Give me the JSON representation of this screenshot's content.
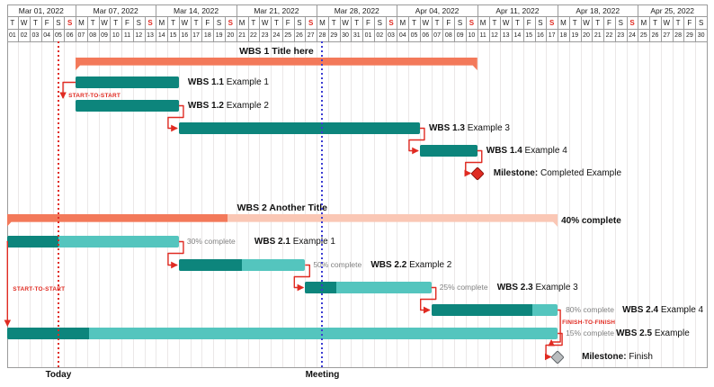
{
  "chart_data": {
    "type": "gantt",
    "title": "",
    "timeline": {
      "start_date": "2022-03-01",
      "end_date": "2022-04-30"
    },
    "calendar": {
      "weeks": [
        {
          "label": "Mar 01, 2022",
          "days": 6
        },
        {
          "label": "Mar 07, 2022",
          "days": 7
        },
        {
          "label": "Mar 14, 2022",
          "days": 7
        },
        {
          "label": "Mar 21, 2022",
          "days": 7
        },
        {
          "label": "Mar 28, 2022",
          "days": 7
        },
        {
          "label": "Apr 04, 2022",
          "days": 7
        },
        {
          "label": "Apr 11, 2022",
          "days": 7
        },
        {
          "label": "Apr 18, 2022",
          "days": 7
        },
        {
          "label": "Apr 25, 2022",
          "days": 6
        }
      ],
      "day_letters": [
        "T",
        "W",
        "T",
        "F",
        "S",
        "S",
        "M",
        "T",
        "W",
        "T",
        "F",
        "S",
        "S",
        "M",
        "T",
        "W",
        "T",
        "F",
        "S",
        "S",
        "M",
        "T",
        "W",
        "T",
        "F",
        "S",
        "S",
        "M",
        "T",
        "W",
        "T",
        "F",
        "S",
        "S",
        "M",
        "T",
        "W",
        "T",
        "F",
        "S",
        "S",
        "M",
        "T",
        "W",
        "T",
        "F",
        "S",
        "S",
        "M",
        "T",
        "W",
        "T",
        "F",
        "S",
        "S",
        "M",
        "T",
        "W",
        "T",
        "F",
        "S"
      ],
      "day_numbers": [
        "01",
        "02",
        "03",
        "04",
        "05",
        "06",
        "07",
        "08",
        "09",
        "10",
        "11",
        "12",
        "13",
        "14",
        "15",
        "16",
        "17",
        "18",
        "19",
        "20",
        "21",
        "22",
        "23",
        "24",
        "25",
        "26",
        "27",
        "28",
        "29",
        "30",
        "31",
        "01",
        "02",
        "03",
        "04",
        "05",
        "06",
        "07",
        "08",
        "09",
        "10",
        "11",
        "12",
        "13",
        "14",
        "15",
        "16",
        "17",
        "18",
        "19",
        "20",
        "21",
        "22",
        "23",
        "24",
        "25",
        "26",
        "27",
        "28",
        "29",
        "30"
      ],
      "sunday_indices": [
        5,
        12,
        19,
        26,
        33,
        40,
        47,
        54
      ]
    },
    "rows": [
      {
        "id": "wbs1",
        "kind": "group",
        "label": "WBS 1 Title here",
        "start": "2022-03-07",
        "end": "2022-04-10",
        "progress": 100
      },
      {
        "id": "t11",
        "kind": "task",
        "label_bold": "WBS 1.1",
        "label": "Example 1",
        "start": "2022-03-07",
        "end": "2022-03-15",
        "progress": 100
      },
      {
        "id": "t12",
        "kind": "task",
        "label_bold": "WBS 1.2",
        "label": "Example 2",
        "start": "2022-03-07",
        "end": "2022-03-15",
        "progress": 100
      },
      {
        "id": "t13",
        "kind": "task",
        "label_bold": "WBS 1.3",
        "label": "Example 3",
        "start": "2022-03-16",
        "end": "2022-04-05",
        "progress": 100
      },
      {
        "id": "t14",
        "kind": "task",
        "label_bold": "WBS 1.4",
        "label": "Example 4",
        "start": "2022-04-06",
        "end": "2022-04-10",
        "progress": 100
      },
      {
        "id": "ms1",
        "kind": "milestone",
        "label_bold": "Milestone:",
        "label": "Completed Example",
        "date": "2022-04-11",
        "milestone_color": "red"
      },
      {
        "id": "wbs2",
        "kind": "group",
        "label": "WBS 2 Another Title",
        "start": "2022-03-01",
        "end": "2022-04-17",
        "progress": 40,
        "progress_label": "40% complete"
      },
      {
        "id": "t21",
        "kind": "task",
        "label_bold": "WBS 2.1",
        "label": "Example 1",
        "start": "2022-03-01",
        "end": "2022-03-15",
        "progress": 30,
        "progress_label": "30% complete"
      },
      {
        "id": "t22",
        "kind": "task",
        "label_bold": "WBS 2.2",
        "label": "Example 2",
        "start": "2022-03-16",
        "end": "2022-03-26",
        "progress": 50,
        "progress_label": "50% complete"
      },
      {
        "id": "t23",
        "kind": "task",
        "label_bold": "WBS 2.3",
        "label": "Example 3",
        "start": "2022-03-27",
        "end": "2022-04-06",
        "progress": 25,
        "progress_label": "25% complete"
      },
      {
        "id": "t24",
        "kind": "task",
        "label_bold": "WBS 2.4",
        "label": "Example 4",
        "start": "2022-04-07",
        "end": "2022-04-17",
        "progress": 80,
        "progress_label": "80% complete"
      },
      {
        "id": "t25",
        "kind": "task",
        "label_bold": "WBS 2.5",
        "label": "Example",
        "start": "2022-03-01",
        "end": "2022-04-17",
        "progress": 15,
        "progress_label": "15% complete"
      },
      {
        "id": "ms2",
        "kind": "milestone",
        "label_bold": "Milestone:",
        "label": "Finish",
        "date": "2022-04-18",
        "milestone_color": "gray"
      }
    ],
    "links": [
      {
        "type": "start-to-start",
        "from": "t11",
        "to": "t12",
        "label": "START-TO-START"
      },
      {
        "type": "finish-to-start",
        "from": "t12",
        "to": "t13"
      },
      {
        "type": "finish-to-start",
        "from": "t13",
        "to": "t14"
      },
      {
        "type": "finish-to-milestone",
        "from": "t14",
        "to": "ms1"
      },
      {
        "type": "start-to-start",
        "from": "t21",
        "to": "t25",
        "label": "START-TO-START"
      },
      {
        "type": "finish-to-start",
        "from": "t21",
        "to": "t22"
      },
      {
        "type": "finish-to-start",
        "from": "t22",
        "to": "t23"
      },
      {
        "type": "finish-to-start",
        "from": "t23",
        "to": "t24"
      },
      {
        "type": "finish-to-finish",
        "from": "t24",
        "to": "t25",
        "label": "FINISH-TO-FINISH"
      },
      {
        "type": "finish-to-milestone",
        "from": "t25",
        "to": "ms2"
      }
    ],
    "markers": {
      "today": {
        "label": "Today",
        "date": "2022-03-05"
      },
      "meeting": {
        "label": "Meeting",
        "date": "2022-03-28"
      }
    }
  },
  "colors": {
    "group_dark": "#f3795a",
    "group_light": "#fac7b5",
    "task_dark": "#0d857c",
    "task_light": "#54c5be",
    "link_red": "#e02b22",
    "sunday_red": "#e02b22",
    "today_line": "#e02b22",
    "meeting_line": "#3c3cd2",
    "milestone_red_fill": "#e02b22",
    "milestone_red_border": "#8f1510",
    "milestone_gray_fill": "#b9bcbe",
    "milestone_gray_border": "#5f6468",
    "header_line": "#9b9b9b",
    "grid_line": "#ebe8e8",
    "progress_text": "#818181",
    "text": "#111111"
  }
}
